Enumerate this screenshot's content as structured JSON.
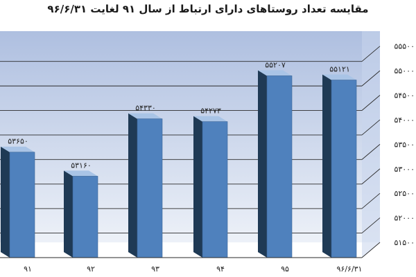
{
  "chart_data": {
    "type": "bar",
    "title": "مقایسه تعداد روستاهای دارای ارتباط از سال ۹۱ لغایت ۹۶/۶/۳۱",
    "categories": [
      "۹۱",
      "۹۲",
      "۹۳",
      "۹۴",
      "۹۵",
      "۹۶/۶/۳۱"
    ],
    "values": [
      53650,
      53160,
      54330,
      54273,
      55207,
      55121
    ],
    "value_labels": [
      "۵۳۶۵۰",
      "۵۳۱۶۰",
      "۵۴۳۳۰",
      "۵۴۲۷۳",
      "۵۵۲۰۷",
      "۵۵۱۲۱"
    ],
    "ylim": [
      51500,
      55750
    ],
    "yticks": [
      51500,
      52000,
      52500,
      53000,
      53500,
      54000,
      54500,
      55000,
      55500
    ],
    "ytick_labels": [
      "۵۱۵۰۰",
      "۵۲۰۰۰",
      "۵۲۵۰۰",
      "۵۳۰۰۰",
      "۵۳۵۰۰",
      "۵۴۰۰۰",
      "۵۴۵۰۰",
      "۵۵۰۰۰",
      "۵۵۵۰۰"
    ],
    "y_axis_side": "right",
    "grid": true,
    "legend": "none",
    "colors": {
      "bar_front": "#4f81bd",
      "bar_side": "#1f3a55",
      "bar_top": "#a9c4e6",
      "wall_top": "#aebfe0",
      "wall_bottom": "#edf1f8",
      "grid": "#2a2a2a"
    }
  }
}
